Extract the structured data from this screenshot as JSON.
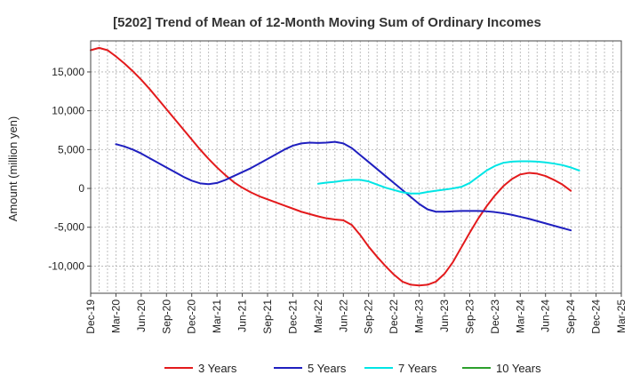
{
  "chart_data": {
    "type": "line",
    "title": "[5202]  Trend of Mean of 12-Month Moving Sum of Ordinary Incomes",
    "xlabel": "",
    "ylabel": "Amount (million yen)",
    "ylim": [
      -13500,
      19000
    ],
    "yticks": [
      -10000,
      -5000,
      0,
      5000,
      10000,
      15000
    ],
    "ytick_labels": [
      "-10,000",
      "-5,000",
      "0",
      "5,000",
      "10,000",
      "15,000"
    ],
    "xticks": [
      "Dec-19",
      "Mar-20",
      "Jun-20",
      "Sep-20",
      "Dec-20",
      "Mar-21",
      "Jun-21",
      "Sep-21",
      "Dec-21",
      "Mar-22",
      "Jun-22",
      "Sep-22",
      "Dec-22",
      "Mar-23",
      "Jun-23",
      "Sep-23",
      "Dec-23",
      "Mar-24",
      "Jun-24",
      "Sep-24",
      "Dec-24",
      "Mar-25"
    ],
    "grid": true,
    "legend_position": "bottom",
    "series": [
      {
        "name": "3 Years",
        "color": "#e31a1c",
        "start_index": 0,
        "values": [
          17800,
          18100,
          17800,
          17000,
          16100,
          15100,
          14000,
          12800,
          11500,
          10200,
          8900,
          7600,
          6300,
          5000,
          3800,
          2700,
          1700,
          800,
          100,
          -500,
          -1000,
          -1400,
          -1800,
          -2200,
          -2600,
          -3000,
          -3300,
          -3600,
          -3850,
          -4000,
          -4100,
          -4700,
          -6000,
          -7500,
          -8800,
          -10000,
          -11100,
          -12000,
          -12400,
          -12500,
          -12400,
          -12000,
          -11000,
          -9500,
          -7600,
          -5700,
          -3900,
          -2300,
          -900,
          300,
          1200,
          1800,
          2000,
          1900,
          1600,
          1100,
          500,
          -300
        ]
      },
      {
        "name": "5 Years",
        "color": "#1f1fbf",
        "start_index": 3,
        "values": [
          5700,
          5400,
          5000,
          4500,
          3900,
          3300,
          2700,
          2100,
          1500,
          1000,
          650,
          550,
          700,
          1100,
          1600,
          2100,
          2600,
          3200,
          3800,
          4400,
          5000,
          5500,
          5800,
          5900,
          5850,
          5900,
          6000,
          5800,
          5200,
          4300,
          3400,
          2500,
          1600,
          700,
          -200,
          -1100,
          -2000,
          -2700,
          -3000,
          -3000,
          -2950,
          -2900,
          -2900,
          -2900,
          -2950,
          -3050,
          -3200,
          -3400,
          -3650,
          -3900,
          -4200,
          -4500,
          -4800,
          -5100,
          -5400
        ]
      },
      {
        "name": "7 Years",
        "color": "#00e5e5",
        "start_index": 27,
        "values": [
          600,
          750,
          850,
          1000,
          1100,
          1100,
          900,
          500,
          100,
          -200,
          -500,
          -650,
          -650,
          -450,
          -300,
          -150,
          0,
          200,
          700,
          1500,
          2300,
          2900,
          3300,
          3450,
          3500,
          3500,
          3450,
          3350,
          3200,
          3000,
          2700,
          2300
        ]
      },
      {
        "name": "10 Years",
        "color": "#2ca02c",
        "start_index": 0,
        "values": []
      }
    ]
  }
}
